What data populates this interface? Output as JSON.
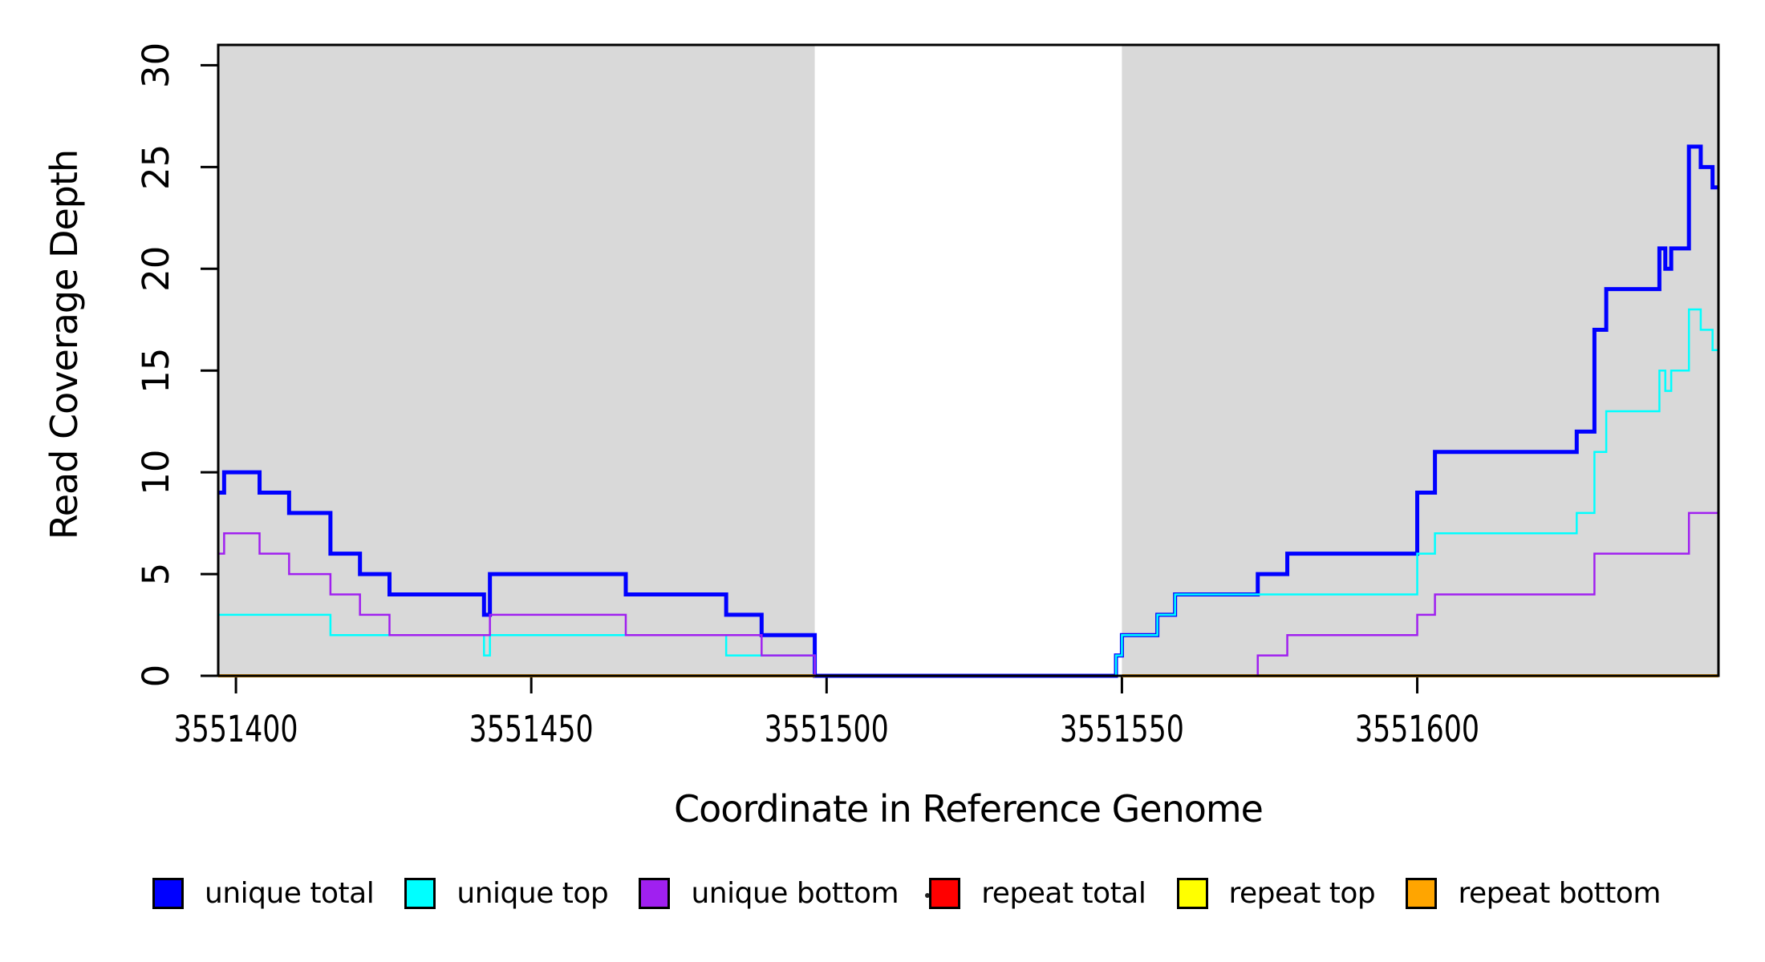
{
  "figure": {
    "background": "#ffffff",
    "xlabel": "Coordinate in Reference Genome",
    "ylabel": "Read Coverage Depth"
  },
  "chart_data": {
    "type": "step",
    "title": "",
    "xlabel": "Coordinate in Reference Genome",
    "ylabel": "Read Coverage Depth",
    "xlim": [
      3551397,
      3551651
    ],
    "ylim": [
      0,
      31
    ],
    "xticks": [
      3551400,
      3551450,
      3551500,
      3551550,
      3551600
    ],
    "yticks": [
      0,
      5,
      10,
      15,
      20,
      25,
      30
    ],
    "grid": false,
    "legend_position": "bottom",
    "background_regions": [
      {
        "x0": 3551397,
        "x1": 3551498,
        "color": "#d9d9d9"
      },
      {
        "x0": 3551550,
        "x1": 3551651,
        "color": "#d9d9d9"
      }
    ],
    "draw_order": [
      0,
      1,
      3,
      4,
      5,
      2
    ],
    "series": [
      {
        "name": "unique total",
        "color": "#0000ff",
        "width": 5,
        "steps": [
          [
            3551397,
            9
          ],
          [
            3551398,
            10
          ],
          [
            3551404,
            9
          ],
          [
            3551409,
            8
          ],
          [
            3551416,
            6
          ],
          [
            3551421,
            5
          ],
          [
            3551426,
            4
          ],
          [
            3551442,
            3
          ],
          [
            3551443,
            5
          ],
          [
            3551466,
            4
          ],
          [
            3551483,
            3
          ],
          [
            3551489,
            2
          ],
          [
            3551498,
            0
          ],
          [
            3551549,
            1
          ],
          [
            3551550,
            2
          ],
          [
            3551556,
            3
          ],
          [
            3551559,
            4
          ],
          [
            3551573,
            5
          ],
          [
            3551578,
            6
          ],
          [
            3551600,
            9
          ],
          [
            3551603,
            11
          ],
          [
            3551627,
            12
          ],
          [
            3551630,
            17
          ],
          [
            3551632,
            19
          ],
          [
            3551641,
            21
          ],
          [
            3551642,
            20
          ],
          [
            3551643,
            21
          ],
          [
            3551646,
            26
          ],
          [
            3551648,
            25
          ],
          [
            3551650,
            24
          ],
          [
            3551651,
            24
          ]
        ]
      },
      {
        "name": "unique top",
        "color": "#00ffff",
        "width": 2.5,
        "steps": [
          [
            3551397,
            3
          ],
          [
            3551416,
            2
          ],
          [
            3551442,
            1
          ],
          [
            3551443,
            2
          ],
          [
            3551483,
            1
          ],
          [
            3551498,
            0
          ],
          [
            3551549,
            1
          ],
          [
            3551550,
            2
          ],
          [
            3551556,
            3
          ],
          [
            3551559,
            4
          ],
          [
            3551600,
            6
          ],
          [
            3551603,
            7
          ],
          [
            3551627,
            8
          ],
          [
            3551630,
            11
          ],
          [
            3551632,
            13
          ],
          [
            3551641,
            15
          ],
          [
            3551642,
            14
          ],
          [
            3551643,
            15
          ],
          [
            3551646,
            18
          ],
          [
            3551648,
            17
          ],
          [
            3551650,
            16
          ],
          [
            3551651,
            16
          ]
        ]
      },
      {
        "name": "unique bottom",
        "color": "#a020f0",
        "width": 2.5,
        "steps": [
          [
            3551397,
            6
          ],
          [
            3551398,
            7
          ],
          [
            3551404,
            6
          ],
          [
            3551409,
            5
          ],
          [
            3551416,
            4
          ],
          [
            3551421,
            3
          ],
          [
            3551426,
            2
          ],
          [
            3551443,
            3
          ],
          [
            3551466,
            2
          ],
          [
            3551489,
            1
          ],
          [
            3551498,
            0
          ],
          [
            3551573,
            1
          ],
          [
            3551578,
            2
          ],
          [
            3551600,
            3
          ],
          [
            3551603,
            4
          ],
          [
            3551630,
            6
          ],
          [
            3551646,
            8
          ],
          [
            3551651,
            8
          ]
        ]
      },
      {
        "name": "repeat total",
        "color": "#ff0000",
        "width": 2.5,
        "value": 0,
        "segments": [
          [
            3551397,
            3551498
          ],
          [
            3551550,
            3551651
          ]
        ]
      },
      {
        "name": "repeat top",
        "color": "#ffff00",
        "width": 2.5,
        "value": 0,
        "segments": [
          [
            3551397,
            3551498
          ],
          [
            3551550,
            3551651
          ]
        ]
      },
      {
        "name": "repeat bottom",
        "color": "#ffa500",
        "width": 4,
        "value": 0,
        "segments": [
          [
            3551397,
            3551498
          ],
          [
            3551550,
            3551651
          ]
        ]
      }
    ]
  },
  "legend": {
    "items": [
      {
        "label": "unique total",
        "color": "#0000ff"
      },
      {
        "label": "unique top",
        "color": "#00ffff"
      },
      {
        "label": "unique bottom",
        "color": "#a020f0"
      },
      {
        "label": "repeat total",
        "color": "#ff0000"
      },
      {
        "label": "repeat top",
        "color": "#ffff00"
      },
      {
        "label": "repeat bottom",
        "color": "#ffa500"
      }
    ],
    "stray_dot": ""
  }
}
